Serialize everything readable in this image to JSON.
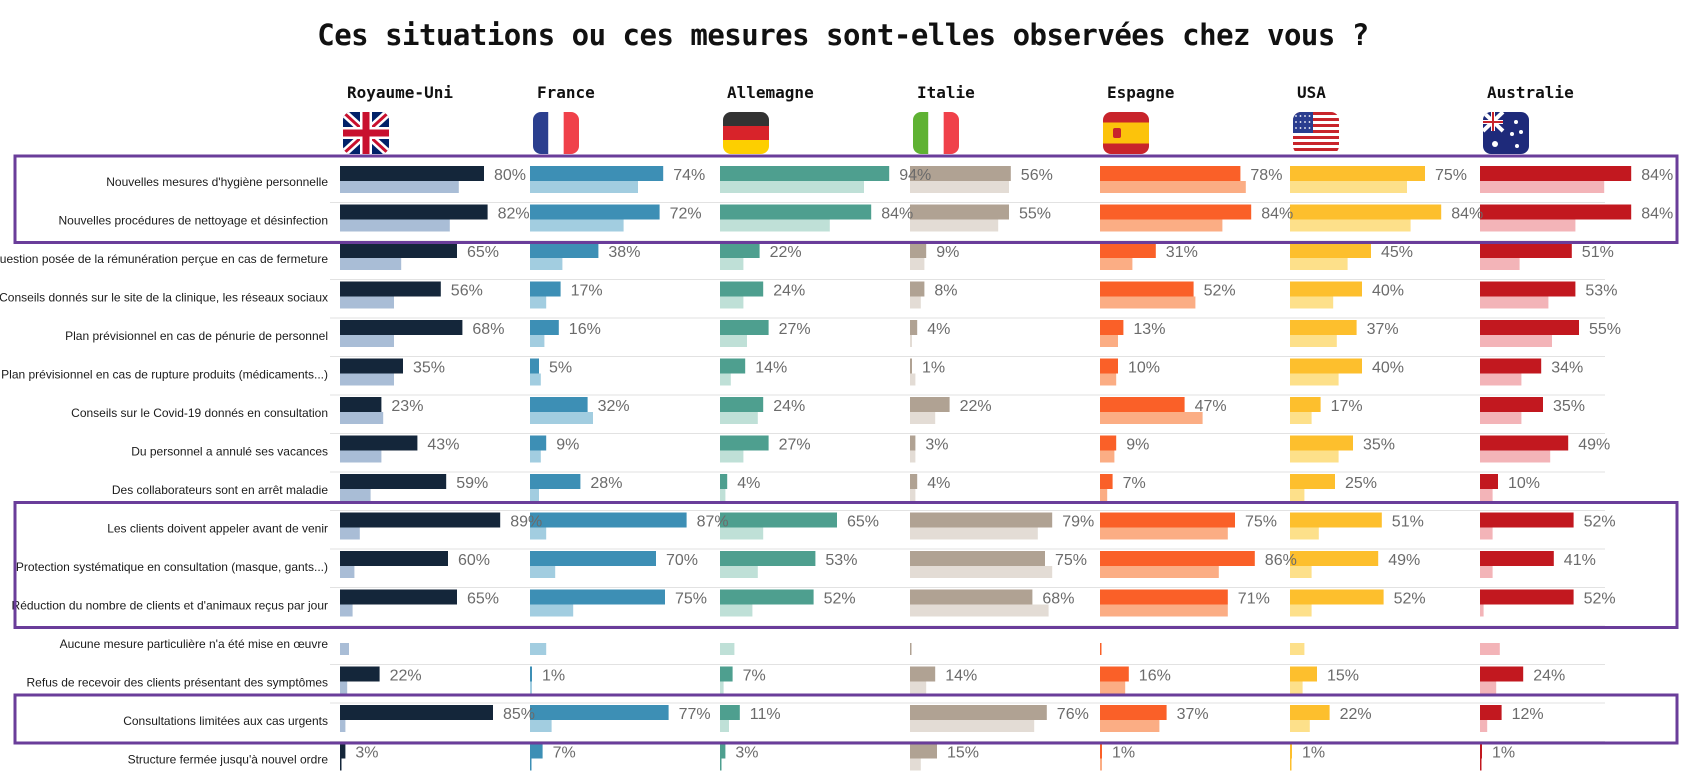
{
  "chart_data": {
    "type": "bar",
    "title": "Ces situations ou ces mesures sont-elles observées chez vous ?",
    "xlim": [
      0,
      100
    ],
    "categories": [
      "Nouvelles mesures d'hygiène personnelle",
      "Nouvelles procédures de nettoyage et désinfection",
      "Question posée de la rémunération perçue en cas de fermeture",
      "Conseils donnés sur le site de la clinique, les réseaux sociaux",
      "Plan prévisionnel en cas de pénurie de personnel",
      "Plan prévisionnel en cas de rupture produits (médicaments...)",
      "Conseils sur le Covid-19 donnés en consultation",
      "Du personnel a annulé ses vacances",
      "Des collaborateurs sont en arrêt maladie",
      "Les clients doivent appeler avant de venir",
      "Protection systématique en consultation (masque, gants...)",
      "Réduction du nombre de clients et d'animaux reçus par jour",
      "Aucune mesure particulière n'a été mise en œuvre",
      "Refus de recevoir des clients présentant des symptômes",
      "Consultations limitées aux cas urgents",
      "Structure fermée jusqu'à nouvel ordre"
    ],
    "highlight_groups": [
      [
        0,
        1
      ],
      [
        9,
        11
      ],
      [
        14,
        14
      ]
    ],
    "highlight_color": "#6a3d9a",
    "series": [
      {
        "name": "Royaume-Uni",
        "flag": "uk-flag",
        "color": "#14263a",
        "color_light": "#a9bdd6",
        "values": [
          80,
          82,
          65,
          56,
          68,
          35,
          23,
          43,
          59,
          89,
          60,
          65,
          null,
          22,
          85,
          3
        ],
        "values_secondary": [
          66,
          61,
          34,
          30,
          30,
          30,
          24,
          23,
          17,
          11,
          8,
          7,
          5,
          4,
          3,
          0
        ]
      },
      {
        "name": "France",
        "flag": "france-flag",
        "color": "#3d8fb5",
        "color_light": "#a2cde0",
        "values": [
          74,
          72,
          38,
          17,
          16,
          5,
          32,
          9,
          28,
          87,
          70,
          75,
          null,
          1,
          77,
          7
        ],
        "values_secondary": [
          60,
          52,
          18,
          9,
          8,
          6,
          35,
          6,
          5,
          9,
          14,
          24,
          9,
          1,
          12,
          0
        ]
      },
      {
        "name": "Allemagne",
        "flag": "germany-flag",
        "color": "#4e9f8f",
        "color_light": "#bfe0d7",
        "values": [
          94,
          84,
          22,
          24,
          27,
          14,
          24,
          27,
          4,
          65,
          53,
          52,
          null,
          7,
          11,
          3
        ],
        "values_secondary": [
          80,
          61,
          13,
          13,
          15,
          6,
          21,
          13,
          3,
          24,
          21,
          18,
          8,
          2,
          5,
          0
        ]
      },
      {
        "name": "Italie",
        "flag": "italy-flag",
        "color": "#b0a293",
        "color_light": "#e3dcd5",
        "values": [
          56,
          55,
          9,
          8,
          4,
          1,
          22,
          3,
          4,
          79,
          75,
          68,
          null,
          14,
          76,
          15
        ],
        "values_secondary": [
          55,
          49,
          8,
          6,
          1,
          3,
          14,
          3,
          3,
          71,
          79,
          77,
          0,
          9,
          69,
          6
        ]
      },
      {
        "name": "Espagne",
        "flag": "spain-flag",
        "color": "#fa6028",
        "color_light": "#fbad84",
        "values": [
          78,
          84,
          31,
          52,
          13,
          10,
          47,
          9,
          7,
          75,
          86,
          71,
          null,
          16,
          37,
          1
        ],
        "values_secondary": [
          81,
          68,
          18,
          53,
          10,
          9,
          57,
          8,
          4,
          71,
          66,
          71,
          0,
          14,
          33,
          1
        ]
      },
      {
        "name": "USA",
        "flag": "usa-flag",
        "color": "#fdbf2d",
        "color_light": "#fde08a",
        "values": [
          75,
          84,
          45,
          40,
          37,
          40,
          17,
          35,
          25,
          51,
          49,
          52,
          null,
          15,
          22,
          1
        ],
        "values_secondary": [
          65,
          67,
          32,
          24,
          26,
          27,
          12,
          27,
          8,
          16,
          12,
          12,
          8,
          7,
          11,
          0
        ]
      },
      {
        "name": "Australie",
        "flag": "australia-flag",
        "color": "#c2181f",
        "color_light": "#f3b4b8",
        "values": [
          84,
          84,
          51,
          53,
          55,
          34,
          35,
          49,
          10,
          52,
          41,
          52,
          null,
          24,
          12,
          1
        ],
        "values_secondary": [
          69,
          53,
          22,
          38,
          40,
          23,
          23,
          39,
          7,
          7,
          7,
          2,
          11,
          9,
          4,
          0
        ]
      }
    ]
  }
}
